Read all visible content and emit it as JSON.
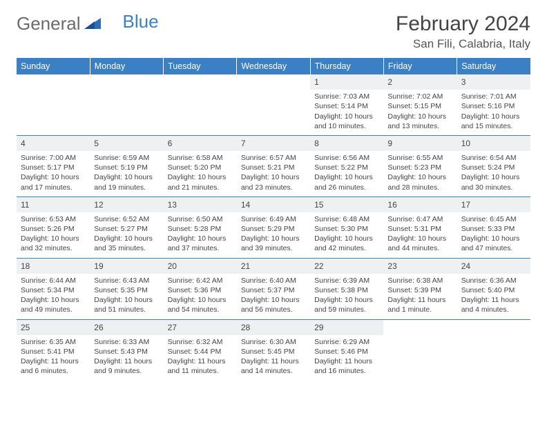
{
  "brand": {
    "part1": "General",
    "part2": "Blue"
  },
  "title": "February 2024",
  "location": "San Fili, Calabria, Italy",
  "colors": {
    "header_bg": "#3b7fc4",
    "daynum_bg": "#eef0f2",
    "row_border": "#3b7fc4"
  },
  "day_headers": [
    "Sunday",
    "Monday",
    "Tuesday",
    "Wednesday",
    "Thursday",
    "Friday",
    "Saturday"
  ],
  "weeks": [
    [
      null,
      null,
      null,
      null,
      {
        "n": "1",
        "sr": "Sunrise: 7:03 AM",
        "ss": "Sunset: 5:14 PM",
        "dl": "Daylight: 10 hours and 10 minutes."
      },
      {
        "n": "2",
        "sr": "Sunrise: 7:02 AM",
        "ss": "Sunset: 5:15 PM",
        "dl": "Daylight: 10 hours and 13 minutes."
      },
      {
        "n": "3",
        "sr": "Sunrise: 7:01 AM",
        "ss": "Sunset: 5:16 PM",
        "dl": "Daylight: 10 hours and 15 minutes."
      }
    ],
    [
      {
        "n": "4",
        "sr": "Sunrise: 7:00 AM",
        "ss": "Sunset: 5:17 PM",
        "dl": "Daylight: 10 hours and 17 minutes."
      },
      {
        "n": "5",
        "sr": "Sunrise: 6:59 AM",
        "ss": "Sunset: 5:19 PM",
        "dl": "Daylight: 10 hours and 19 minutes."
      },
      {
        "n": "6",
        "sr": "Sunrise: 6:58 AM",
        "ss": "Sunset: 5:20 PM",
        "dl": "Daylight: 10 hours and 21 minutes."
      },
      {
        "n": "7",
        "sr": "Sunrise: 6:57 AM",
        "ss": "Sunset: 5:21 PM",
        "dl": "Daylight: 10 hours and 23 minutes."
      },
      {
        "n": "8",
        "sr": "Sunrise: 6:56 AM",
        "ss": "Sunset: 5:22 PM",
        "dl": "Daylight: 10 hours and 26 minutes."
      },
      {
        "n": "9",
        "sr": "Sunrise: 6:55 AM",
        "ss": "Sunset: 5:23 PM",
        "dl": "Daylight: 10 hours and 28 minutes."
      },
      {
        "n": "10",
        "sr": "Sunrise: 6:54 AM",
        "ss": "Sunset: 5:24 PM",
        "dl": "Daylight: 10 hours and 30 minutes."
      }
    ],
    [
      {
        "n": "11",
        "sr": "Sunrise: 6:53 AM",
        "ss": "Sunset: 5:26 PM",
        "dl": "Daylight: 10 hours and 32 minutes."
      },
      {
        "n": "12",
        "sr": "Sunrise: 6:52 AM",
        "ss": "Sunset: 5:27 PM",
        "dl": "Daylight: 10 hours and 35 minutes."
      },
      {
        "n": "13",
        "sr": "Sunrise: 6:50 AM",
        "ss": "Sunset: 5:28 PM",
        "dl": "Daylight: 10 hours and 37 minutes."
      },
      {
        "n": "14",
        "sr": "Sunrise: 6:49 AM",
        "ss": "Sunset: 5:29 PM",
        "dl": "Daylight: 10 hours and 39 minutes."
      },
      {
        "n": "15",
        "sr": "Sunrise: 6:48 AM",
        "ss": "Sunset: 5:30 PM",
        "dl": "Daylight: 10 hours and 42 minutes."
      },
      {
        "n": "16",
        "sr": "Sunrise: 6:47 AM",
        "ss": "Sunset: 5:31 PM",
        "dl": "Daylight: 10 hours and 44 minutes."
      },
      {
        "n": "17",
        "sr": "Sunrise: 6:45 AM",
        "ss": "Sunset: 5:33 PM",
        "dl": "Daylight: 10 hours and 47 minutes."
      }
    ],
    [
      {
        "n": "18",
        "sr": "Sunrise: 6:44 AM",
        "ss": "Sunset: 5:34 PM",
        "dl": "Daylight: 10 hours and 49 minutes."
      },
      {
        "n": "19",
        "sr": "Sunrise: 6:43 AM",
        "ss": "Sunset: 5:35 PM",
        "dl": "Daylight: 10 hours and 51 minutes."
      },
      {
        "n": "20",
        "sr": "Sunrise: 6:42 AM",
        "ss": "Sunset: 5:36 PM",
        "dl": "Daylight: 10 hours and 54 minutes."
      },
      {
        "n": "21",
        "sr": "Sunrise: 6:40 AM",
        "ss": "Sunset: 5:37 PM",
        "dl": "Daylight: 10 hours and 56 minutes."
      },
      {
        "n": "22",
        "sr": "Sunrise: 6:39 AM",
        "ss": "Sunset: 5:38 PM",
        "dl": "Daylight: 10 hours and 59 minutes."
      },
      {
        "n": "23",
        "sr": "Sunrise: 6:38 AM",
        "ss": "Sunset: 5:39 PM",
        "dl": "Daylight: 11 hours and 1 minute."
      },
      {
        "n": "24",
        "sr": "Sunrise: 6:36 AM",
        "ss": "Sunset: 5:40 PM",
        "dl": "Daylight: 11 hours and 4 minutes."
      }
    ],
    [
      {
        "n": "25",
        "sr": "Sunrise: 6:35 AM",
        "ss": "Sunset: 5:41 PM",
        "dl": "Daylight: 11 hours and 6 minutes."
      },
      {
        "n": "26",
        "sr": "Sunrise: 6:33 AM",
        "ss": "Sunset: 5:43 PM",
        "dl": "Daylight: 11 hours and 9 minutes."
      },
      {
        "n": "27",
        "sr": "Sunrise: 6:32 AM",
        "ss": "Sunset: 5:44 PM",
        "dl": "Daylight: 11 hours and 11 minutes."
      },
      {
        "n": "28",
        "sr": "Sunrise: 6:30 AM",
        "ss": "Sunset: 5:45 PM",
        "dl": "Daylight: 11 hours and 14 minutes."
      },
      {
        "n": "29",
        "sr": "Sunrise: 6:29 AM",
        "ss": "Sunset: 5:46 PM",
        "dl": "Daylight: 11 hours and 16 minutes."
      },
      null,
      null
    ]
  ]
}
